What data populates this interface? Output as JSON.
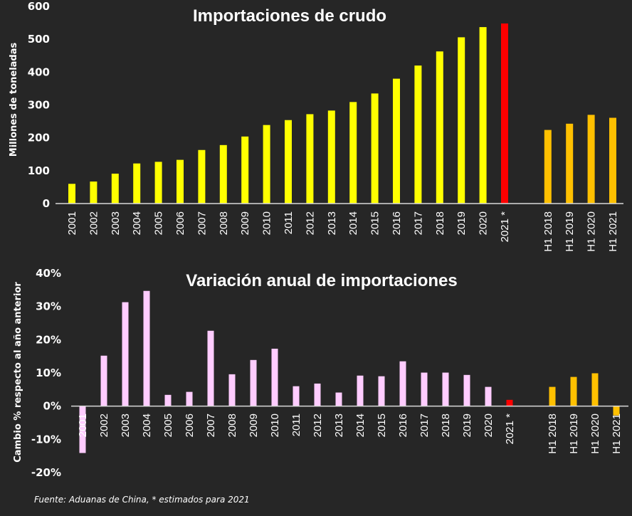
{
  "chart_data": [
    {
      "type": "bar",
      "title": "Importaciones de crudo",
      "ylabel": "Millones de toneladas",
      "xlabel": "",
      "ylim": [
        0,
        600
      ],
      "yticks": [
        "0",
        "100",
        "200",
        "300",
        "400",
        "500",
        "600"
      ],
      "grid": false,
      "categories": [
        "2001",
        "2002",
        "2003",
        "2004",
        "2005",
        "2006",
        "2007",
        "2008",
        "2009",
        "2010",
        "2011",
        "2012",
        "2013",
        "2014",
        "2015",
        "2016",
        "2017",
        "2018",
        "2019",
        "2020",
        "2021 *",
        "H1 2018",
        "H1 2019",
        "H1 2020",
        "H1 2021"
      ],
      "values": [
        60,
        67,
        91,
        122,
        127,
        133,
        163,
        178,
        204,
        239,
        254,
        272,
        283,
        309,
        335,
        380,
        420,
        463,
        506,
        537,
        548,
        224,
        243,
        270,
        261
      ],
      "colors": [
        "#ffff00",
        "#ffff00",
        "#ffff00",
        "#ffff00",
        "#ffff00",
        "#ffff00",
        "#ffff00",
        "#ffff00",
        "#ffff00",
        "#ffff00",
        "#ffff00",
        "#ffff00",
        "#ffff00",
        "#ffff00",
        "#ffff00",
        "#ffff00",
        "#ffff00",
        "#ffff00",
        "#ffff00",
        "#ffff00",
        "#ff0000",
        "#ffc000",
        "#ffc000",
        "#ffc000",
        "#ffc000"
      ]
    },
    {
      "type": "bar",
      "title": "Variación anual de importaciones",
      "ylabel": "Cambio % respecto al año anterior",
      "xlabel": "",
      "ylim": [
        -20,
        40
      ],
      "yticks": [
        "-20%",
        "-10%",
        "0%",
        "10%",
        "20%",
        "30%",
        "40%"
      ],
      "grid": false,
      "categories": [
        "2001",
        "2002",
        "2003",
        "2004",
        "2005",
        "2006",
        "2007",
        "2008",
        "2009",
        "2010",
        "2011",
        "2012",
        "2013",
        "2014",
        "2015",
        "2016",
        "2017",
        "2018",
        "2019",
        "2020",
        "2021 *",
        "H1 2018",
        "H1 2019",
        "H1 2020",
        "H1 2021"
      ],
      "values": [
        -14.1,
        15.2,
        31.3,
        34.7,
        3.4,
        4.3,
        22.7,
        9.6,
        13.9,
        17.3,
        6.0,
        6.8,
        4.1,
        9.2,
        9.0,
        13.5,
        10.1,
        10.1,
        9.4,
        5.8,
        1.9,
        5.8,
        8.8,
        9.9,
        -2.8
      ],
      "colors": [
        "#ffccff",
        "#ffccff",
        "#ffccff",
        "#ffccff",
        "#ffccff",
        "#ffccff",
        "#ffccff",
        "#ffccff",
        "#ffccff",
        "#ffccff",
        "#ffccff",
        "#ffccff",
        "#ffccff",
        "#ffccff",
        "#ffccff",
        "#ffccff",
        "#ffccff",
        "#ffccff",
        "#ffccff",
        "#ffccff",
        "#ff0000",
        "#ffc000",
        "#ffc000",
        "#ffc000",
        "#ffc000"
      ]
    }
  ],
  "footnote": "Fuente: Aduanas de China, * estimados para 2021",
  "background": "#262626"
}
